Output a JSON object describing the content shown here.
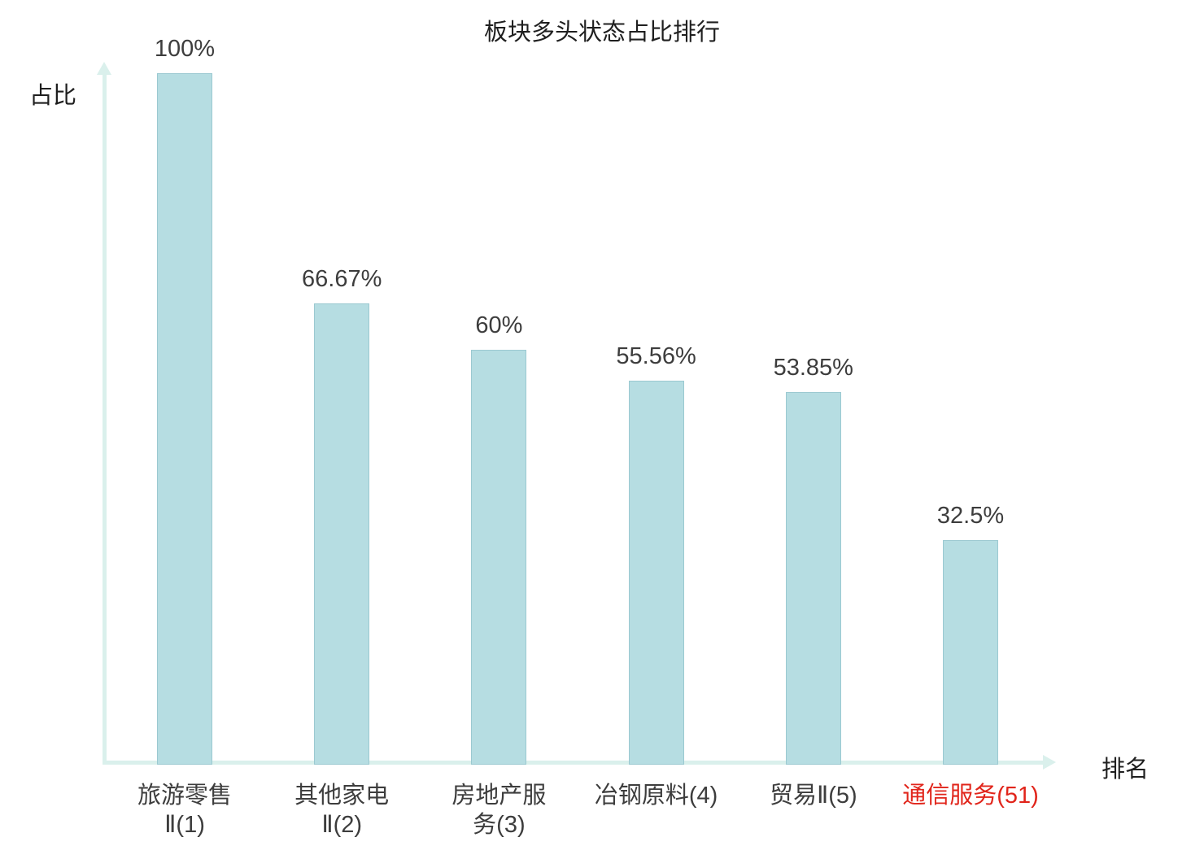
{
  "chart_data": {
    "type": "bar",
    "title": "板块多头状态占比排行",
    "xlabel": "排名",
    "ylabel": "占比",
    "ylim": [
      0,
      100
    ],
    "grid": false,
    "legend": null,
    "categories": [
      "旅游零售\nⅡ(1)",
      "其他家电\nⅡ(2)",
      "房地产服\n务(3)",
      "冶钢原料(4)",
      "贸易Ⅱ(5)",
      "通信服务(51)"
    ],
    "values": [
      100,
      66.67,
      60,
      55.56,
      53.85,
      32.5
    ],
    "value_labels": [
      "100%",
      "66.67%",
      "60%",
      "55.56%",
      "53.85%",
      "32.5%"
    ],
    "highlighted_category_index": 5,
    "colors": {
      "bar_fill": "#b6dde2",
      "bar_border": "#9bc9d1",
      "axis": "#daf0ec",
      "text": "#3d3d3d",
      "highlight": "#e1251b"
    }
  }
}
